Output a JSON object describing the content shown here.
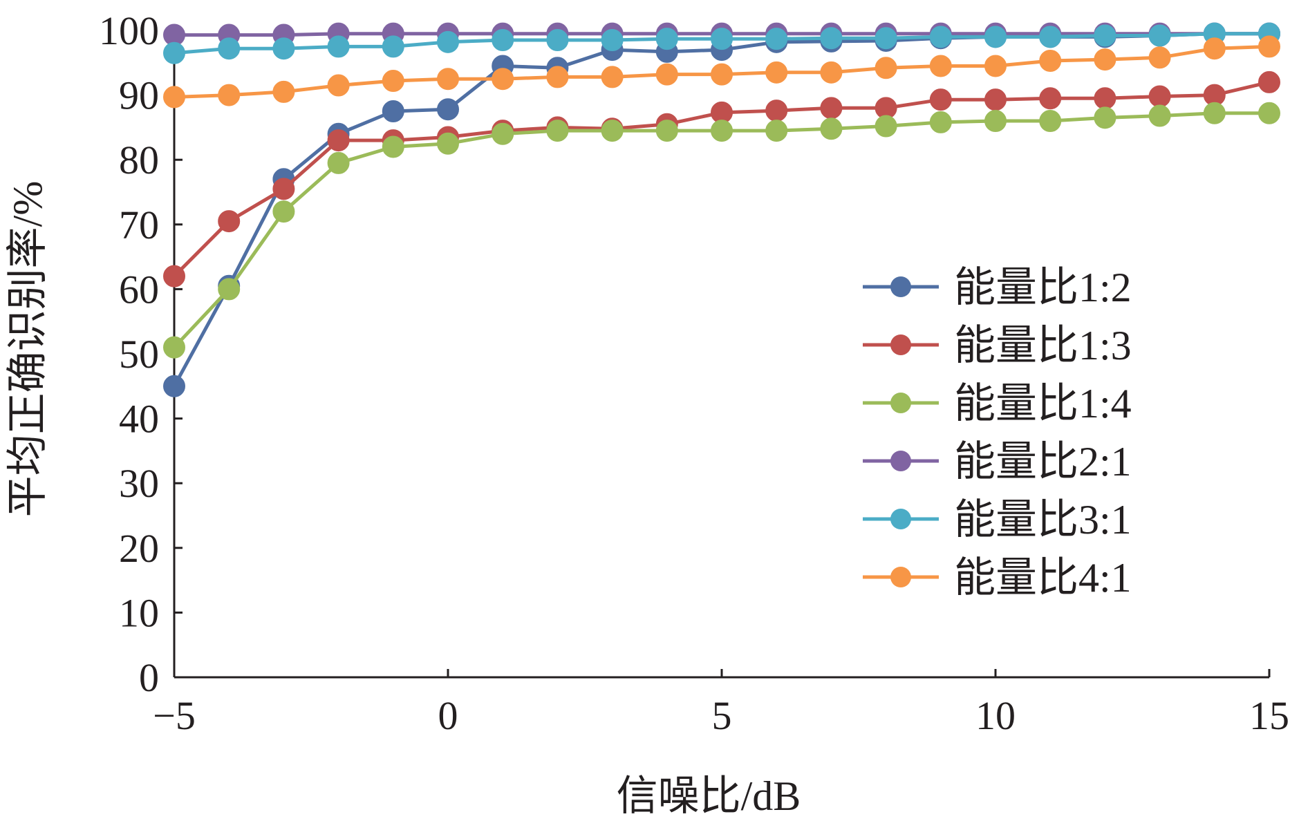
{
  "chart_data": {
    "type": "line",
    "xlabel": "信噪比/dB",
    "ylabel": "平均正确识别率/%",
    "xlim": [
      -5,
      15
    ],
    "ylim": [
      0,
      100
    ],
    "xticks": [
      -5,
      0,
      5,
      10,
      15
    ],
    "xtick_labels": [
      "−5",
      "0",
      "5",
      "10",
      "15"
    ],
    "yticks": [
      0,
      10,
      20,
      30,
      40,
      50,
      60,
      70,
      80,
      90,
      100
    ],
    "ytick_labels": [
      "0",
      "10",
      "20",
      "30",
      "40",
      "50",
      "60",
      "70",
      "80",
      "90",
      "100"
    ],
    "grid": false,
    "legend_position": "right",
    "x": [
      -5,
      -4,
      -3,
      -2,
      -1,
      0,
      1,
      2,
      3,
      4,
      5,
      6,
      7,
      8,
      9,
      10,
      11,
      12,
      13,
      14,
      15
    ],
    "series": [
      {
        "name": "能量比1:2",
        "color": "#4f6fa3",
        "values": [
          45,
          60.5,
          77,
          84,
          87.5,
          87.8,
          94.5,
          94.2,
          97,
          96.7,
          97,
          98.2,
          98.3,
          98.4,
          98.8,
          99,
          99,
          99,
          99.2,
          99.5,
          99.5
        ]
      },
      {
        "name": "能量比1:3",
        "color": "#c0504d",
        "values": [
          62,
          70.5,
          75.5,
          83,
          83,
          83.5,
          84.5,
          85,
          84.8,
          85.5,
          87.3,
          87.6,
          88,
          88,
          89.3,
          89.3,
          89.5,
          89.5,
          89.8,
          90,
          92
        ]
      },
      {
        "name": "能量比1:4",
        "color": "#9bbb59",
        "values": [
          51,
          60,
          72,
          79.5,
          82,
          82.5,
          84,
          84.5,
          84.5,
          84.5,
          84.5,
          84.5,
          84.8,
          85.2,
          85.8,
          86,
          86,
          86.5,
          86.8,
          87.2,
          87.2
        ]
      },
      {
        "name": "能量比2:1",
        "color": "#8064a2",
        "values": [
          99.3,
          99.3,
          99.3,
          99.5,
          99.5,
          99.5,
          99.5,
          99.5,
          99.5,
          99.5,
          99.5,
          99.5,
          99.5,
          99.5,
          99.5,
          99.5,
          99.5,
          99.5,
          99.5,
          99.5,
          99.5
        ]
      },
      {
        "name": "能量比3:1",
        "color": "#4bacc6",
        "values": [
          96.5,
          97.2,
          97.2,
          97.5,
          97.5,
          98.2,
          98.5,
          98.5,
          98.5,
          98.7,
          98.7,
          98.7,
          98.8,
          98.8,
          99,
          99,
          99,
          99.2,
          99.2,
          99.5,
          99.5
        ]
      },
      {
        "name": "能量比4:1",
        "color": "#f79646",
        "values": [
          89.7,
          90,
          90.5,
          91.5,
          92.2,
          92.5,
          92.5,
          92.8,
          92.8,
          93.2,
          93.2,
          93.5,
          93.5,
          94.2,
          94.5,
          94.5,
          95.3,
          95.5,
          95.8,
          97.2,
          97.5
        ]
      }
    ]
  }
}
